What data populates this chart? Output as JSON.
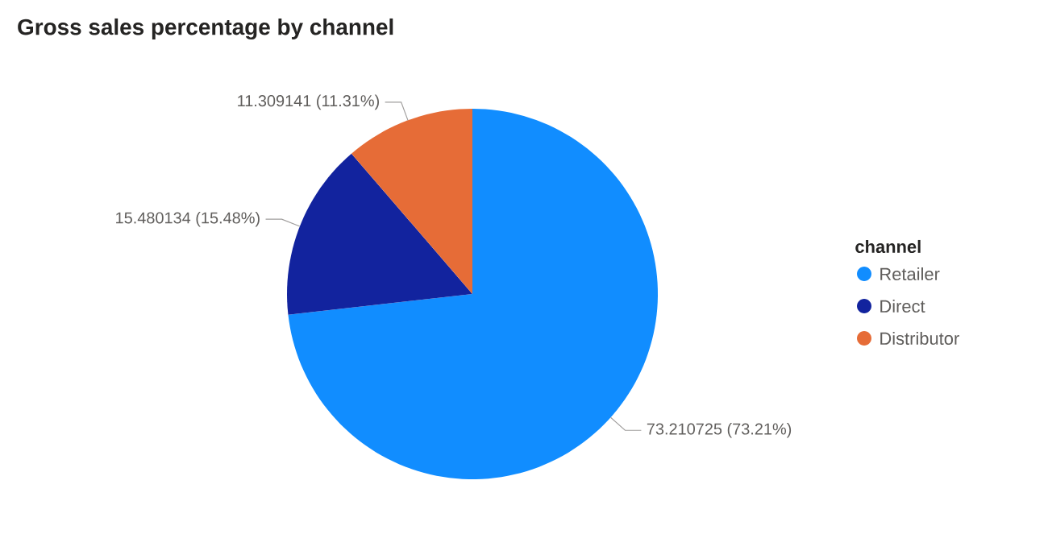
{
  "chart_data": {
    "type": "pie",
    "title": "Gross sales percentage by channel",
    "legend_title": "channel",
    "legend": "right",
    "categories": [
      "Retailer",
      "Direct",
      "Distributor"
    ],
    "values": [
      73.210725,
      15.480134,
      11.309141
    ],
    "colors": [
      "#118dff",
      "#12239e",
      "#e66c37"
    ],
    "value_labels": [
      "73.210725 (73.21%)",
      "15.480134 (15.48%)",
      "11.309141 (11.31%)"
    ]
  }
}
